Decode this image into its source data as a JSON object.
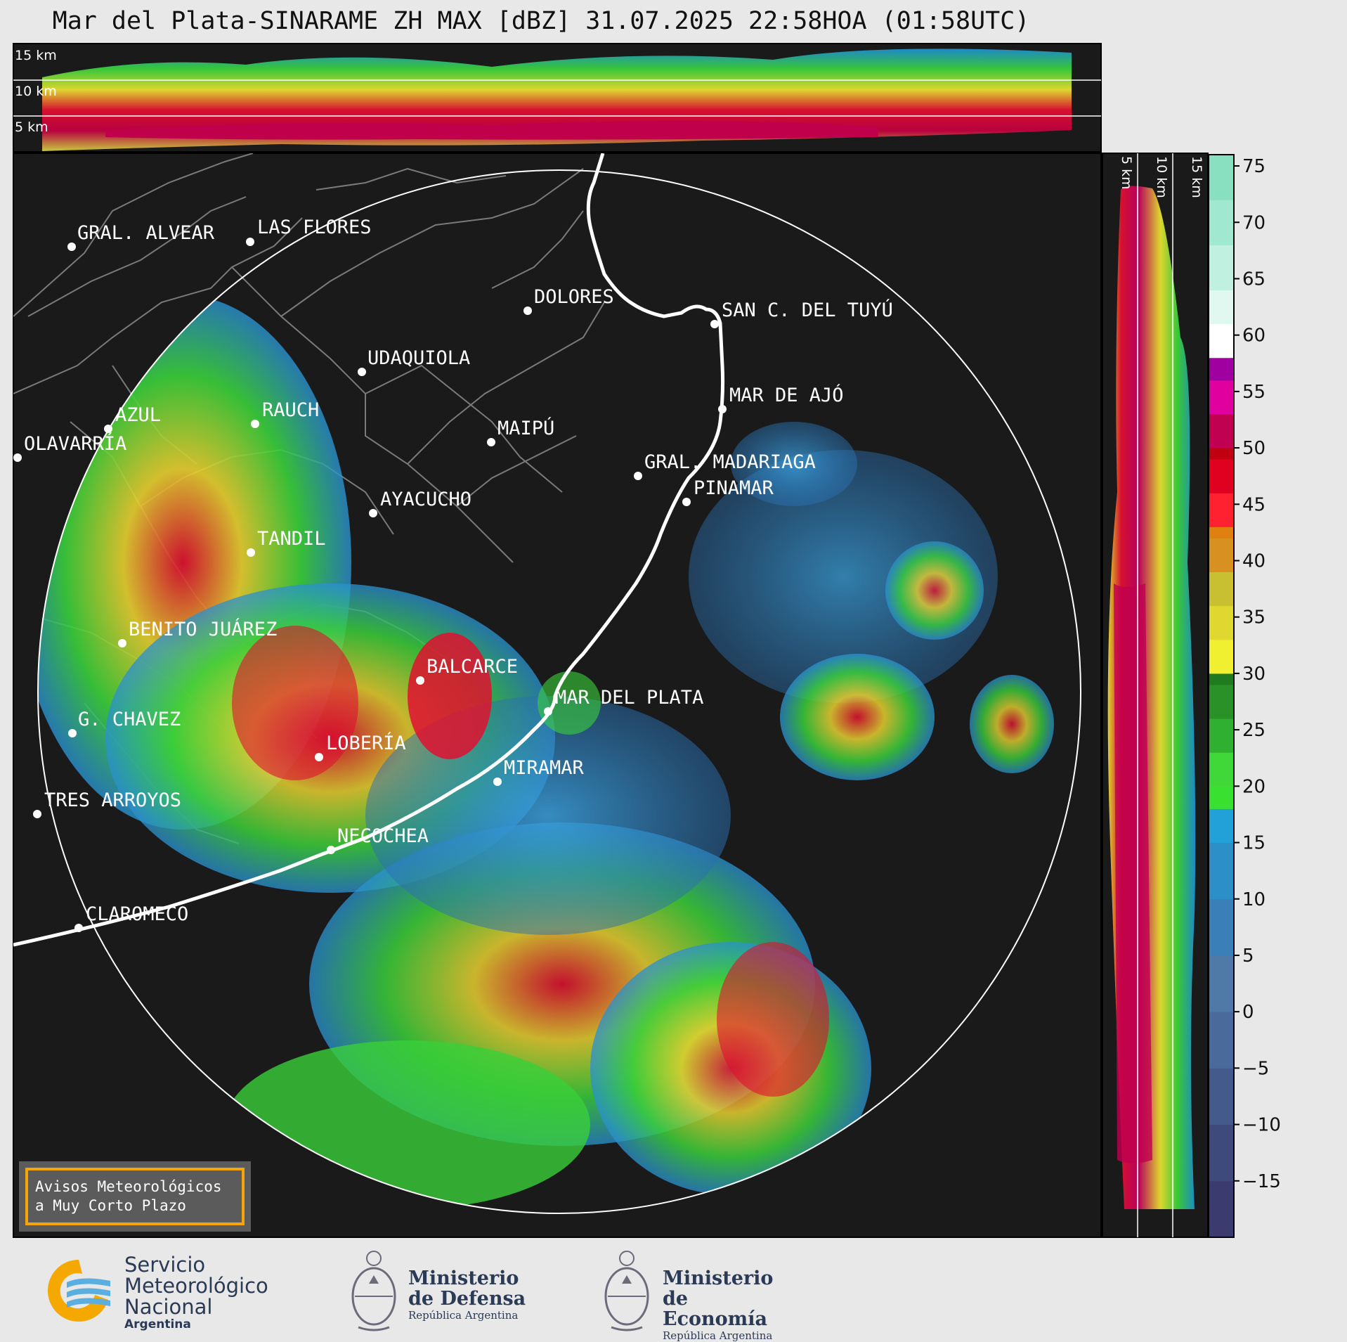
{
  "header": {
    "title": "Mar del Plata-SINARAME ZH MAX [dBZ] 31.07.2025 22:58HOA (01:58UTC)"
  },
  "altitude_labels_top": [
    "15 km",
    "10 km",
    "5 km"
  ],
  "altitude_labels_right": [
    "5 km",
    "10 km",
    "15 km"
  ],
  "cities": [
    {
      "name": "GRAL. ALVEAR"
    },
    {
      "name": "LAS FLORES"
    },
    {
      "name": "DOLORES"
    },
    {
      "name": "SAN C. DEL TUYÚ"
    },
    {
      "name": "UDAQUIOLA"
    },
    {
      "name": "MAR DE AJÓ"
    },
    {
      "name": "AZUL"
    },
    {
      "name": "RAUCH"
    },
    {
      "name": "MAIPÚ"
    },
    {
      "name": "OLAVARRÍA"
    },
    {
      "name": "GRAL. MADARIAGA"
    },
    {
      "name": "PINAMAR"
    },
    {
      "name": "AYACUCHO"
    },
    {
      "name": "TANDIL"
    },
    {
      "name": "BENITO JUÁREZ"
    },
    {
      "name": "BALCARCE"
    },
    {
      "name": "MAR DEL PLATA"
    },
    {
      "name": "G. CHAVEZ"
    },
    {
      "name": "LOBERÍA"
    },
    {
      "name": "MIRAMAR"
    },
    {
      "name": "TRES ARROYOS"
    },
    {
      "name": "NECOCHEA"
    },
    {
      "name": "CLAROMECO"
    }
  ],
  "colorbar": {
    "ticks": [
      "75",
      "70",
      "65",
      "60",
      "55",
      "50",
      "45",
      "40",
      "35",
      "30",
      "25",
      "20",
      "15",
      "10",
      "5",
      "0",
      "−5",
      "−10",
      "−15"
    ],
    "min": -20,
    "max": 76
  },
  "warning_box": {
    "line1": "Avisos Meteorológicos",
    "line2": "a Muy Corto Plazo",
    "border_color": "#f5a40a"
  },
  "footer": {
    "smn": {
      "line1": "Servicio",
      "line2": "Meteorológico",
      "line3": "Nacional",
      "country": "Argentina"
    },
    "defensa": {
      "line1": "Ministerio",
      "line2": "de Defensa",
      "sub": "República Argentina"
    },
    "economia": {
      "line1": "Ministerio",
      "line2": "de Economía",
      "sub": "República Argentina"
    }
  },
  "colors": {
    "map_bg": "#1a1a1a",
    "border": "#777777",
    "coast": "#ffffff"
  },
  "icons": [
    "smn-logo-icon",
    "argentina-coat-of-arms-icon"
  ]
}
